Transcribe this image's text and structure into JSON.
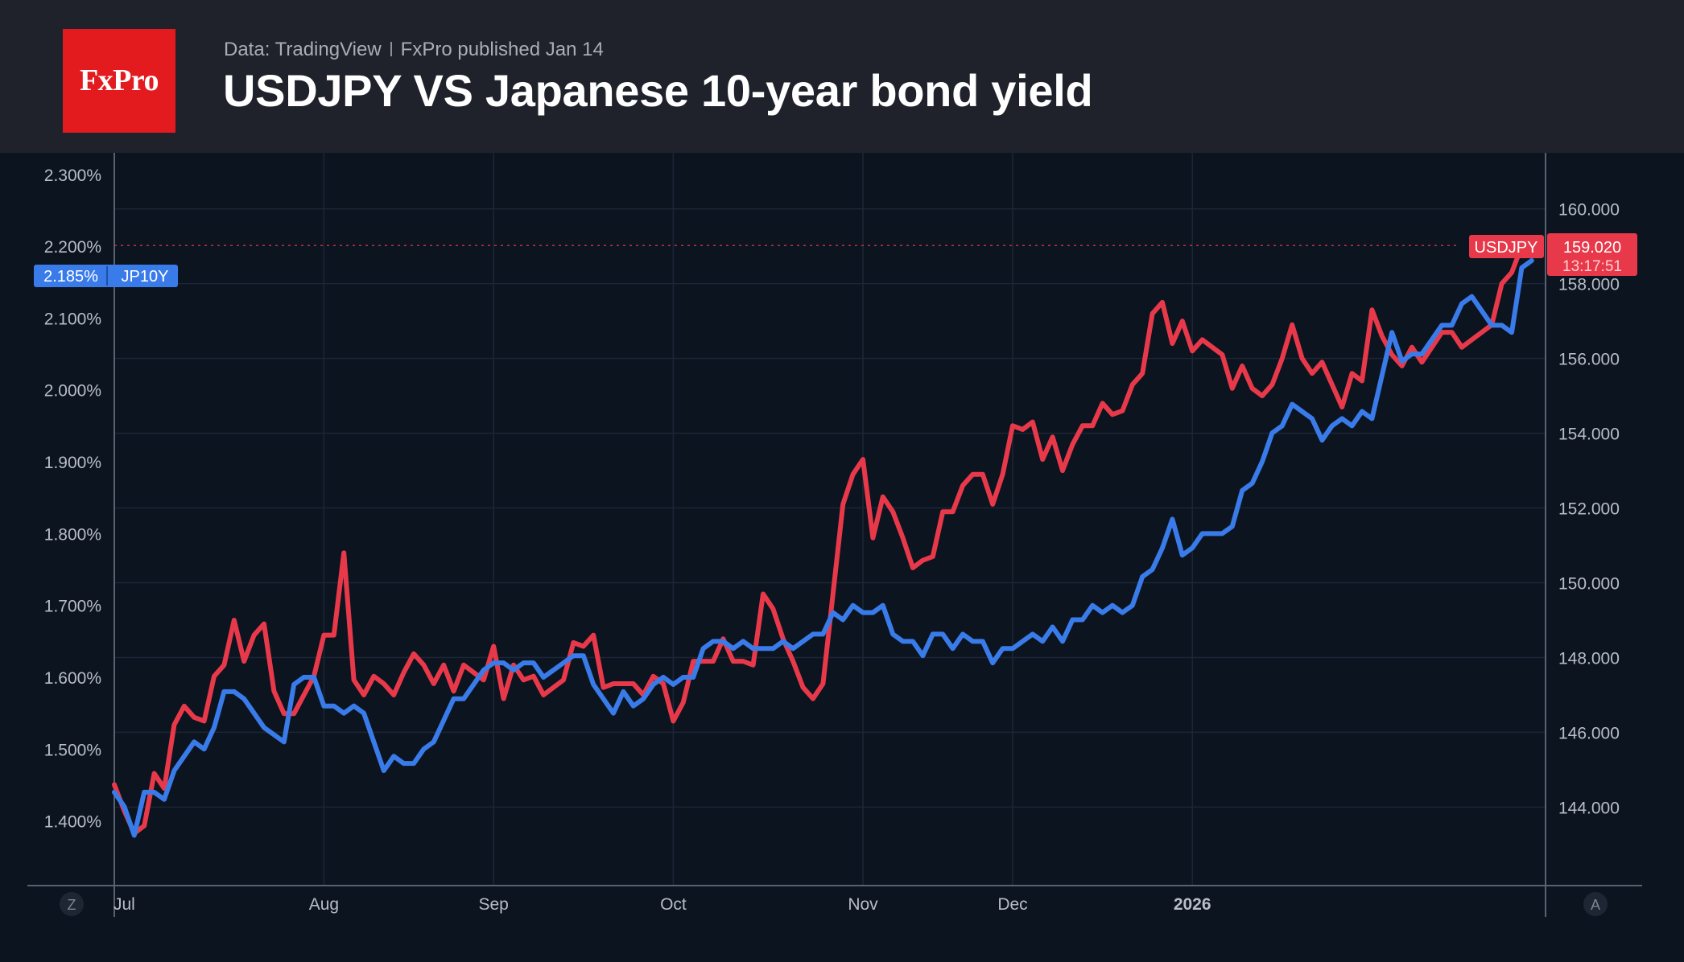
{
  "header": {
    "logo_text": "FxPro",
    "source": "Data: TradingView",
    "published": "FxPro published Jan 14",
    "title": "USDJPY VS Japanese 10-year bond yield"
  },
  "colors": {
    "usdjpy": "#e8394a",
    "jp10y": "#3a7bea",
    "background": "#0c1420",
    "header": "#1f222b"
  },
  "footer": {
    "left_button": "Z",
    "right_button": "A"
  },
  "chart_data": {
    "type": "line",
    "x_labels": [
      "Jul",
      "Aug",
      "Sep",
      "Oct",
      "Nov",
      "Dec",
      "2026"
    ],
    "x_label_positions": [
      1,
      21,
      38,
      56,
      75,
      90,
      108
    ],
    "left_axis": {
      "ticks": [
        "2.300%",
        "2.200%",
        "2.100%",
        "2.000%",
        "1.900%",
        "1.800%",
        "1.700%",
        "1.600%",
        "1.500%",
        "1.400%"
      ],
      "range": [
        1.31,
        2.33
      ]
    },
    "right_axis": {
      "ticks": [
        "160.000",
        "158.000",
        "156.000",
        "154.000",
        "152.000",
        "150.000",
        "148.000",
        "146.000",
        "144.000"
      ],
      "range": [
        141.9,
        161.5
      ]
    },
    "series": [
      {
        "name": "USDJPY",
        "axis": "right",
        "last_label": "159.020",
        "time_label": "13:17:51",
        "values": [
          144.6,
          143.9,
          143.3,
          143.5,
          144.9,
          144.5,
          146.2,
          146.7,
          146.4,
          146.3,
          147.5,
          147.8,
          149.0,
          147.9,
          148.6,
          148.9,
          147.1,
          146.5,
          146.5,
          147.0,
          147.5,
          148.6,
          148.6,
          150.8,
          147.4,
          147.0,
          147.5,
          147.3,
          147.0,
          147.6,
          148.1,
          147.8,
          147.3,
          147.8,
          147.1,
          147.8,
          147.6,
          147.4,
          148.3,
          146.9,
          147.8,
          147.4,
          147.5,
          147.0,
          147.2,
          147.4,
          148.4,
          148.3,
          148.6,
          147.2,
          147.3,
          147.3,
          147.3,
          147.0,
          147.5,
          147.3,
          146.3,
          146.8,
          147.9,
          147.9,
          147.9,
          148.5,
          147.9,
          147.9,
          147.8,
          149.7,
          149.3,
          148.5,
          147.9,
          147.2,
          146.9,
          147.3,
          149.7,
          152.1,
          152.9,
          153.3,
          151.2,
          152.3,
          151.9,
          151.2,
          150.4,
          150.6,
          150.7,
          151.9,
          151.9,
          152.6,
          152.9,
          152.9,
          152.1,
          152.9,
          154.2,
          154.1,
          154.3,
          153.3,
          153.9,
          153.0,
          153.7,
          154.2,
          154.2,
          154.8,
          154.5,
          154.6,
          155.3,
          155.6,
          157.2,
          157.5,
          156.4,
          157.0,
          156.2,
          156.5,
          156.3,
          156.1,
          155.2,
          155.8,
          155.2,
          155.0,
          155.3,
          156.0,
          156.9,
          156.0,
          155.6,
          155.9,
          155.3,
          154.7,
          155.6,
          155.4,
          157.3,
          156.6,
          156.1,
          155.8,
          156.3,
          155.9,
          156.3,
          156.7,
          156.7,
          156.3,
          156.5,
          156.7,
          156.9,
          158.0,
          158.3,
          159.0,
          159.0
        ]
      },
      {
        "name": "JP10Y",
        "axis": "left",
        "last_label": "2.185%",
        "values": [
          1.44,
          1.42,
          1.38,
          1.44,
          1.44,
          1.43,
          1.47,
          1.49,
          1.51,
          1.5,
          1.53,
          1.58,
          1.58,
          1.57,
          1.55,
          1.53,
          1.52,
          1.51,
          1.59,
          1.6,
          1.6,
          1.56,
          1.56,
          1.55,
          1.56,
          1.55,
          1.51,
          1.47,
          1.49,
          1.48,
          1.48,
          1.5,
          1.51,
          1.54,
          1.57,
          1.57,
          1.59,
          1.61,
          1.62,
          1.62,
          1.61,
          1.62,
          1.62,
          1.6,
          1.61,
          1.62,
          1.63,
          1.63,
          1.59,
          1.57,
          1.55,
          1.58,
          1.56,
          1.57,
          1.59,
          1.6,
          1.59,
          1.6,
          1.6,
          1.64,
          1.65,
          1.65,
          1.64,
          1.65,
          1.64,
          1.64,
          1.64,
          1.65,
          1.64,
          1.65,
          1.66,
          1.66,
          1.69,
          1.68,
          1.7,
          1.69,
          1.69,
          1.7,
          1.66,
          1.65,
          1.65,
          1.63,
          1.66,
          1.66,
          1.64,
          1.66,
          1.65,
          1.65,
          1.62,
          1.64,
          1.64,
          1.65,
          1.66,
          1.65,
          1.67,
          1.65,
          1.68,
          1.68,
          1.7,
          1.69,
          1.7,
          1.69,
          1.7,
          1.74,
          1.75,
          1.78,
          1.82,
          1.77,
          1.78,
          1.8,
          1.8,
          1.8,
          1.81,
          1.86,
          1.87,
          1.9,
          1.94,
          1.95,
          1.98,
          1.97,
          1.96,
          1.93,
          1.95,
          1.96,
          1.95,
          1.97,
          1.96,
          2.02,
          2.08,
          2.04,
          2.05,
          2.05,
          2.07,
          2.09,
          2.09,
          2.12,
          2.13,
          2.11,
          2.09,
          2.09,
          2.08,
          2.17,
          2.18
        ]
      }
    ]
  }
}
